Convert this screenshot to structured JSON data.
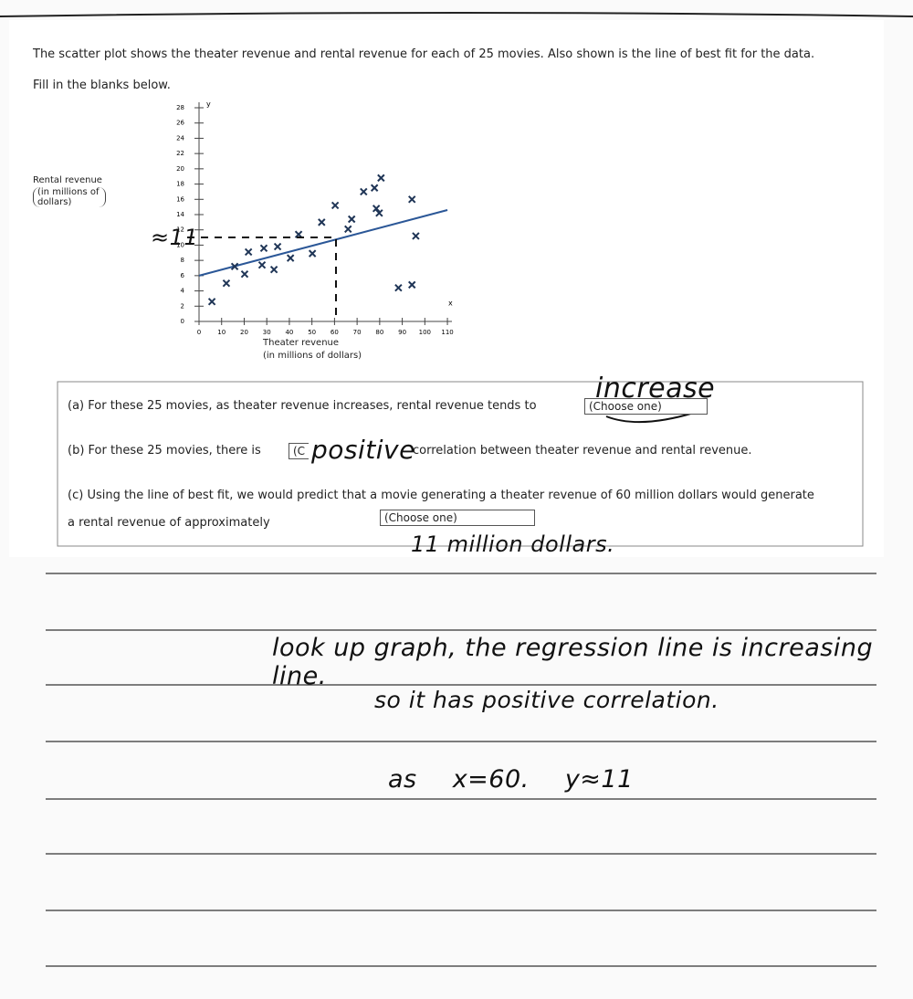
{
  "intro": "The scatter plot shows the theater revenue and rental revenue for each of 25 movies. Also shown is the line of best fit for the data.",
  "instruction": "Fill in the blanks below.",
  "chart_data": {
    "type": "scatter",
    "y_symbol": "y",
    "x_symbol": "x",
    "y_label": "Rental revenue",
    "y_label_units": "(in millions of dollars)",
    "x_label": "Theater revenue",
    "x_label_units": "(in millions of dollars)",
    "x": [
      5.7,
      12.1,
      15.8,
      20.2,
      21.9,
      27.9,
      28.7,
      33.2,
      34.8,
      40.5,
      44.1,
      50.2,
      54.3,
      60.3,
      66.0,
      67.6,
      72.9,
      77.7,
      80.6,
      78.5,
      79.8,
      94.3,
      96.0,
      88.3,
      94.3
    ],
    "values": [
      2.6,
      5.0,
      7.2,
      6.2,
      9.1,
      7.4,
      9.6,
      6.8,
      9.8,
      8.3,
      11.4,
      8.9,
      13.0,
      15.2,
      12.1,
      13.4,
      17.0,
      17.5,
      18.8,
      14.8,
      14.2,
      16.0,
      11.2,
      4.4,
      4.8
    ],
    "color": "#1f3556",
    "best_fit": {
      "x": [
        0,
        110
      ],
      "values": [
        6,
        14.6
      ],
      "color": "#2b5797"
    },
    "xlim": [
      0,
      112
    ],
    "ylim": [
      0,
      28
    ],
    "xticks": [
      0,
      10,
      20,
      30,
      40,
      50,
      60,
      70,
      80,
      90,
      100,
      110
    ],
    "yticks": [
      0,
      2,
      4,
      6,
      8,
      10,
      12,
      14,
      16,
      18,
      20,
      22,
      24,
      26,
      28
    ]
  },
  "questions": [
    {
      "label": "(a)",
      "text": "For these 25 movies, as theater revenue increases, rental revenue tends to",
      "dropdown": "(Choose one)"
    },
    {
      "label": "(b)",
      "text": "For these 25 movies, there is",
      "dropdown": "(C",
      "after": "correlation between theater revenue and rental revenue."
    },
    {
      "label": "(c)",
      "text": "Using the line of best fit, we would predict that a movie generating a theater revenue of 60 million dollars would generate a rental revenue of approximately",
      "dropdown": "(Choose one)"
    }
  ],
  "handwriting": {
    "graph_note": "≈11",
    "answer_a": "increase",
    "answer_b": "positive",
    "answer_c": "11 million dollars.",
    "line_1": "look up graph, the regression line is increasing line.",
    "line_2": "so it has positive correlation.",
    "line_3": "as x=60. y≈11"
  }
}
